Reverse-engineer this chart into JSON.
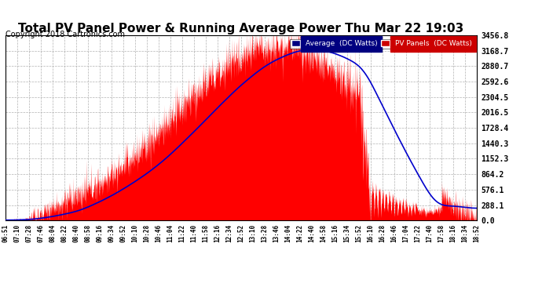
{
  "title": "Total PV Panel Power & Running Average Power Thu Mar 22 19:03",
  "copyright": "Copyright 2018 Cartronics.com",
  "yticks": [
    0.0,
    288.1,
    576.1,
    864.2,
    1152.3,
    1440.3,
    1728.4,
    2016.5,
    2304.5,
    2592.6,
    2880.7,
    3168.7,
    3456.8
  ],
  "yticklabels": [
    "0.0",
    "288.1",
    "576.1",
    "864.2",
    "1152.3",
    "1440.3",
    "1728.4",
    "2016.5",
    "2304.5",
    "2592.6",
    "2880.7",
    "3168.7",
    "3456.8"
  ],
  "xticklabels": [
    "06:51",
    "07:10",
    "07:28",
    "07:46",
    "08:04",
    "08:22",
    "08:40",
    "08:58",
    "09:16",
    "09:34",
    "09:52",
    "10:10",
    "10:28",
    "10:46",
    "11:04",
    "11:22",
    "11:40",
    "11:58",
    "12:16",
    "12:34",
    "12:52",
    "13:10",
    "13:28",
    "13:46",
    "14:04",
    "14:22",
    "14:40",
    "14:58",
    "15:16",
    "15:34",
    "15:52",
    "16:10",
    "16:28",
    "16:46",
    "17:04",
    "17:22",
    "17:40",
    "17:58",
    "18:16",
    "18:34",
    "18:52"
  ],
  "pv_color": "#ff0000",
  "avg_color": "#0000cc",
  "bg_color": "#ffffff",
  "grid_color": "#aaaaaa",
  "legend_avg_bg": "#000080",
  "legend_pv_bg": "#cc0000",
  "ylim": [
    0.0,
    3456.8
  ],
  "title_fontsize": 11,
  "copyright_fontsize": 7
}
